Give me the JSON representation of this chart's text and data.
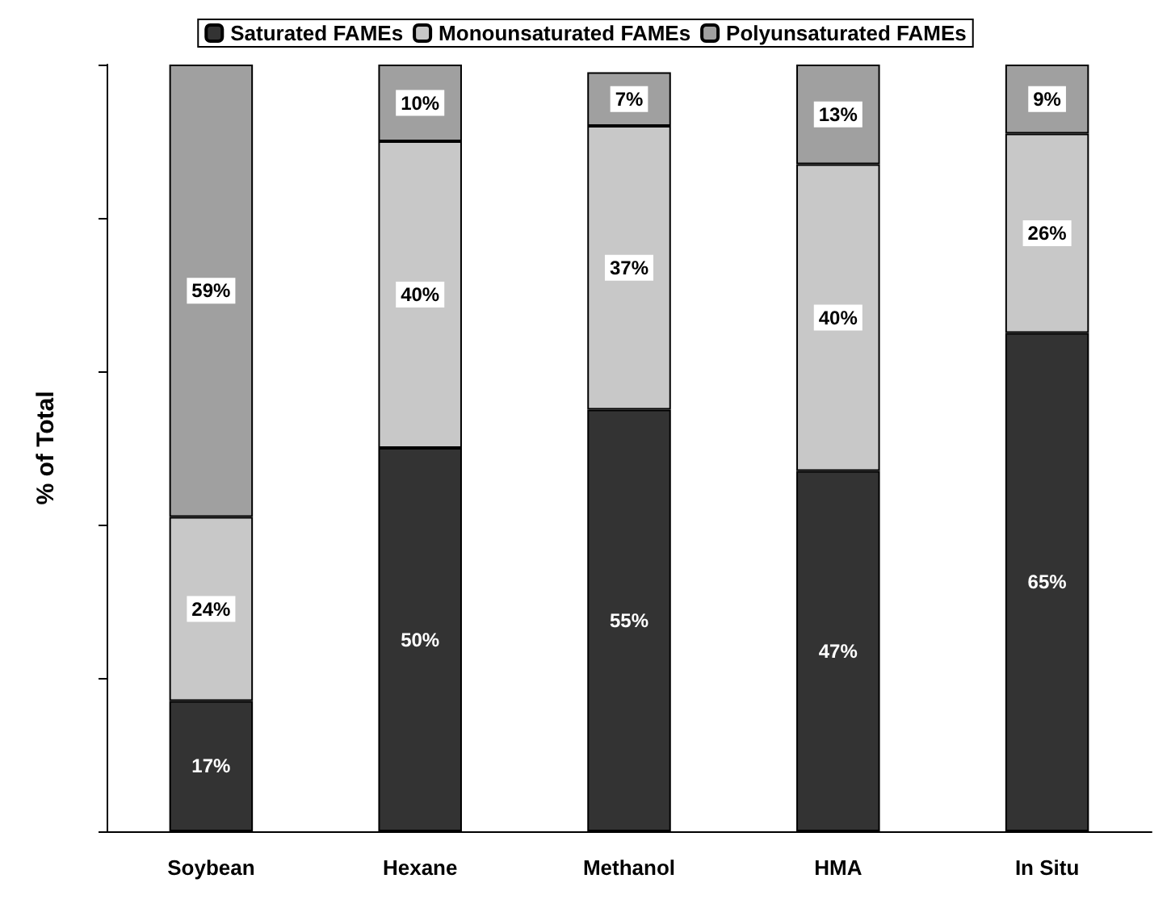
{
  "chart_data": {
    "type": "bar",
    "stacked": true,
    "ylabel": "% of Total",
    "categories": [
      "Soybean",
      "Hexane",
      "Methanol",
      "HMA",
      "In Situ"
    ],
    "series": [
      {
        "name": "Saturated FAMEs",
        "color": "#333333",
        "values": [
          17,
          50,
          55,
          47,
          65
        ],
        "value_labels": [
          "17%",
          "50%",
          "55%",
          "47%",
          "65%"
        ]
      },
      {
        "name": "Monounsaturated FAMEs",
        "color": "#c8c8c8",
        "values": [
          24,
          40,
          37,
          40,
          26
        ],
        "value_labels": [
          "24%",
          "40%",
          "37%",
          "40%",
          "26%"
        ]
      },
      {
        "name": "Polyunsaturated FAMEs",
        "color": "#a0a0a0",
        "values": [
          59,
          10,
          7,
          13,
          9
        ],
        "value_labels": [
          "59%",
          "10%",
          "7%",
          "13%",
          "9%"
        ]
      }
    ],
    "tick_labels": "x",
    "legend": "top",
    "grid": false
  }
}
